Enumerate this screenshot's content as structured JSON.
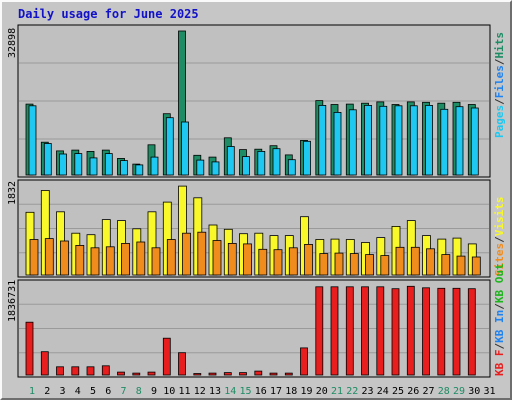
{
  "title": "Daily usage for June 2025",
  "colors": {
    "pages": "#1ec8f0",
    "files": "#1e82f0",
    "hits": "#1e8c64",
    "visits": "#f8f82a",
    "sites": "#f08c1e",
    "kbf": "#e81e1e",
    "kbin": "#1e82f0",
    "kbout": "#1eb41e",
    "panel": "#c0c0c0",
    "weekend": "#1e8c64",
    "weekday": "#1212c8"
  },
  "chart_data": [
    {
      "type": "bar",
      "name": "hits-pages-files",
      "ymax_label": "32898",
      "ymax": 32898,
      "side_label": {
        "pages": "Pages",
        "files": "Files",
        "hits": "Hits",
        "sep": "/"
      },
      "x": [
        1,
        2,
        3,
        4,
        5,
        6,
        7,
        8,
        9,
        10,
        11,
        12,
        13,
        14,
        15,
        16,
        17,
        18,
        19,
        20,
        21,
        22,
        23,
        24,
        25,
        26,
        27,
        28,
        29,
        30,
        31
      ],
      "series": [
        {
          "key": "hits",
          "values": [
            16200,
            7500,
            5500,
            5700,
            5400,
            5700,
            3800,
            2500,
            6900,
            14000,
            32898,
            4500,
            4100,
            8500,
            5800,
            5900,
            6700,
            4600,
            7900,
            17000,
            16100,
            16200,
            16400,
            16700,
            16100,
            16700,
            16600,
            16400,
            16600,
            16100,
            0
          ]
        },
        {
          "key": "pages",
          "values": [
            15800,
            7200,
            4800,
            4900,
            3900,
            4900,
            3300,
            2300,
            4100,
            13100,
            12100,
            3400,
            3000,
            6500,
            4200,
            5400,
            6000,
            3500,
            7700,
            15900,
            14300,
            14900,
            15900,
            15700,
            15800,
            15800,
            15900,
            15000,
            15600,
            15300,
            0
          ]
        }
      ]
    },
    {
      "type": "bar",
      "name": "visits-sites",
      "ymax_label": "1832",
      "ymax": 1832,
      "side_label": {
        "visits": "Visits",
        "sites": "Sites",
        "sep": "/"
      },
      "x": [
        1,
        2,
        3,
        4,
        5,
        6,
        7,
        8,
        9,
        10,
        11,
        12,
        13,
        14,
        15,
        16,
        17,
        18,
        19,
        20,
        21,
        22,
        23,
        24,
        25,
        26,
        27,
        28,
        29,
        30,
        31
      ],
      "series": [
        {
          "key": "visits",
          "values": [
            1290,
            1740,
            1300,
            860,
            830,
            1140,
            1120,
            950,
            1300,
            1500,
            1830,
            1590,
            1030,
            940,
            850,
            860,
            810,
            810,
            1200,
            730,
            740,
            730,
            670,
            770,
            1000,
            1120,
            810,
            740,
            760,
            640,
            0
          ]
        },
        {
          "key": "sites",
          "values": [
            730,
            750,
            700,
            610,
            560,
            580,
            650,
            680,
            560,
            730,
            860,
            880,
            710,
            650,
            640,
            530,
            520,
            560,
            630,
            440,
            450,
            440,
            420,
            400,
            570,
            570,
            540,
            420,
            390,
            370,
            0
          ]
        }
      ]
    },
    {
      "type": "bar",
      "name": "kbytes",
      "ymax_label": "1836731",
      "ymax": 1836731,
      "side_label": {
        "kbf": "KB F",
        "kbin": "KB In",
        "kbout": "KB Out",
        "sep": "/"
      },
      "x": [
        1,
        2,
        3,
        4,
        5,
        6,
        7,
        8,
        9,
        10,
        11,
        12,
        13,
        14,
        15,
        16,
        17,
        18,
        19,
        20,
        21,
        22,
        23,
        24,
        25,
        26,
        27,
        28,
        29,
        30,
        31
      ],
      "series": [
        {
          "key": "kbf",
          "values": [
            1090000,
            480000,
            170000,
            170000,
            170000,
            190000,
            60000,
            40000,
            60000,
            760000,
            460000,
            30000,
            40000,
            50000,
            50000,
            80000,
            40000,
            40000,
            560000,
            1820000,
            1820000,
            1820000,
            1820000,
            1820000,
            1780000,
            1830000,
            1800000,
            1790000,
            1790000,
            1780000,
            0
          ]
        }
      ]
    }
  ],
  "days": [
    "1",
    "2",
    "3",
    "4",
    "5",
    "6",
    "7",
    "8",
    "9",
    "10",
    "11",
    "12",
    "13",
    "14",
    "15",
    "16",
    "17",
    "18",
    "19",
    "20",
    "21",
    "22",
    "23",
    "24",
    "25",
    "26",
    "27",
    "28",
    "29",
    "30",
    "31"
  ],
  "weekend_days": [
    1,
    7,
    8,
    14,
    15,
    21,
    22,
    28,
    29
  ]
}
